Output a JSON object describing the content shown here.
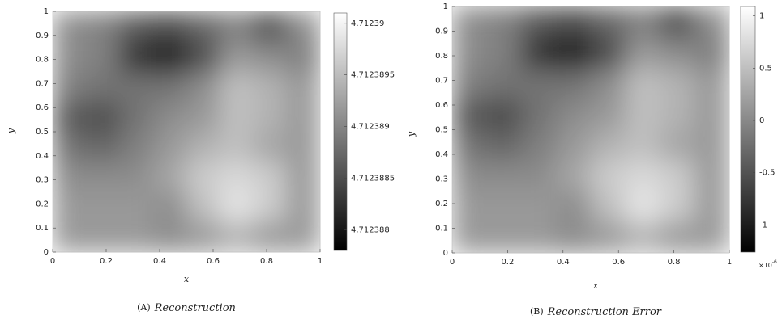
{
  "chart_data": [
    {
      "type": "heatmap",
      "colormap": "gray",
      "x_label": "x",
      "y_label": "y",
      "caption_label": "(A)",
      "caption": "Reconstruction",
      "xlim": [
        0,
        1
      ],
      "ylim": [
        0,
        1
      ],
      "xticks": [
        0,
        0.2,
        0.4,
        0.6,
        0.8,
        1
      ],
      "yticks": [
        0,
        0.1,
        0.2,
        0.3,
        0.4,
        0.5,
        0.6,
        0.7,
        0.8,
        0.9,
        1
      ],
      "clim": [
        4.7123878,
        4.7123901
      ],
      "cticks": [
        4.712388,
        4.7123885,
        4.712389,
        4.7123895,
        4.71239
      ],
      "z": [
        [
          4.71238918,
          4.71238918,
          4.71238918,
          4.71238907,
          4.71238918,
          4.71238941,
          4.71238918,
          4.71238918
        ],
        [
          4.71238918,
          4.71238918,
          4.71238918,
          4.71238907,
          4.71238953,
          4.71238987,
          4.71238964,
          4.71238918
        ],
        [
          4.71238907,
          4.71238907,
          4.71238907,
          4.7123893,
          4.71238964,
          4.71238976,
          4.71238964,
          4.71238918
        ],
        [
          4.71238884,
          4.71238872,
          4.71238895,
          4.71238918,
          4.71238941,
          4.71238953,
          4.7123893,
          4.71238918
        ],
        [
          4.71238861,
          4.71238849,
          4.71238884,
          4.71238907,
          4.71238918,
          4.71238953,
          4.71238941,
          4.71238918
        ],
        [
          4.71238895,
          4.71238884,
          4.71238884,
          4.71238884,
          4.71238907,
          4.71238953,
          4.71238941,
          4.71238918
        ],
        [
          4.71238907,
          4.71238895,
          4.71238826,
          4.71238803,
          4.71238849,
          4.71238918,
          4.71238907,
          4.71238895
        ],
        [
          4.71238907,
          4.71238895,
          4.71238861,
          4.71238849,
          4.71238872,
          4.71238895,
          4.71238849,
          4.71238907
        ]
      ]
    },
    {
      "type": "heatmap",
      "colormap": "gray",
      "x_label": "x",
      "y_label": "y",
      "caption_label": "(B)",
      "caption": "Reconstruction Error",
      "xlim": [
        0,
        1
      ],
      "ylim": [
        0,
        1
      ],
      "xticks": [
        0,
        0.2,
        0.4,
        0.6,
        0.8,
        1
      ],
      "yticks": [
        0,
        0.1,
        0.2,
        0.3,
        0.4,
        0.5,
        0.6,
        0.7,
        0.8,
        0.9,
        1
      ],
      "clim": [
        -1.26,
        1.09
      ],
      "cticks": [
        -1,
        -0.5,
        0,
        0.5,
        1
      ],
      "c_exponent_base": "×10",
      "c_exponent": "-6",
      "z": [
        [
          0.15,
          0.15,
          0.15,
          0.03,
          0.15,
          0.39,
          0.15,
          0.15
        ],
        [
          0.15,
          0.15,
          0.15,
          0.03,
          0.5,
          0.86,
          0.62,
          0.15
        ],
        [
          0.03,
          0.03,
          0.03,
          0.27,
          0.62,
          0.74,
          0.62,
          0.15
        ],
        [
          -0.2,
          -0.32,
          -0.09,
          0.15,
          0.39,
          0.5,
          0.27,
          0.15
        ],
        [
          -0.44,
          -0.56,
          -0.2,
          0.03,
          0.15,
          0.5,
          0.39,
          0.15
        ],
        [
          -0.09,
          -0.2,
          -0.2,
          -0.2,
          0.03,
          0.5,
          0.39,
          0.15
        ],
        [
          0.03,
          -0.09,
          -0.79,
          -1.03,
          -0.56,
          0.15,
          0.03,
          -0.09
        ],
        [
          0.03,
          -0.09,
          -0.44,
          -0.56,
          -0.32,
          -0.09,
          -0.56,
          0.03
        ]
      ]
    }
  ]
}
